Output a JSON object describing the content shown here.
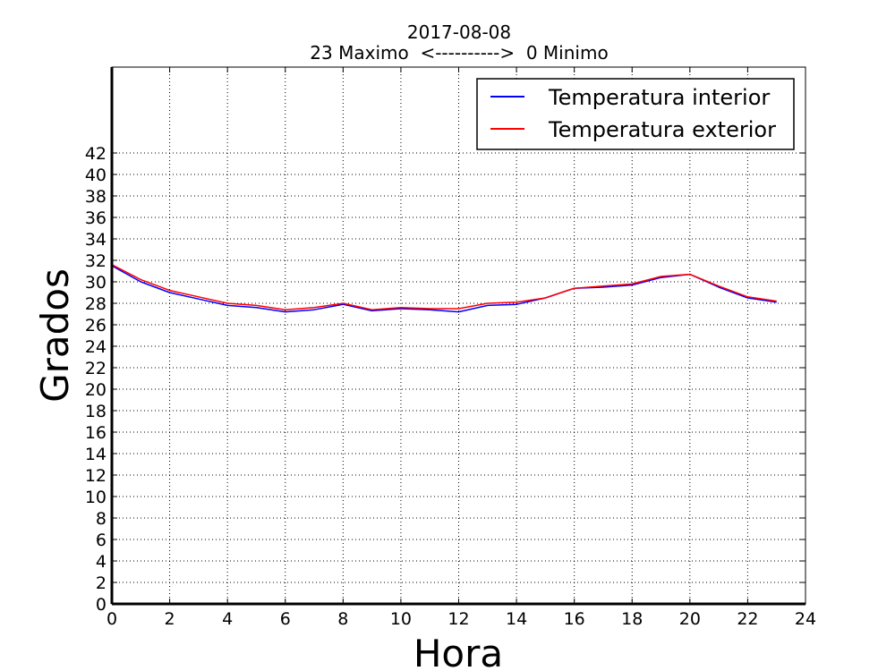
{
  "chart_data": {
    "type": "line",
    "title": "2017-08-08",
    "subtitle": "23 Maximo  <---------->  0 Minimo",
    "xlabel": "Hora",
    "ylabel": "Grados",
    "xlim": [
      0,
      24
    ],
    "ylim": [
      0,
      50
    ],
    "x_ticks": [
      0,
      2,
      4,
      6,
      8,
      10,
      12,
      14,
      16,
      18,
      20,
      22,
      24
    ],
    "y_ticks": [
      0,
      2,
      4,
      6,
      8,
      10,
      12,
      14,
      16,
      18,
      20,
      22,
      24,
      26,
      28,
      30,
      32,
      34,
      36,
      38,
      40,
      42
    ],
    "grid": true,
    "legend_position": "top-right",
    "x": [
      0,
      1,
      2,
      3,
      4,
      5,
      6,
      7,
      8,
      9,
      10,
      11,
      12,
      13,
      14,
      15,
      16,
      17,
      18,
      19,
      20,
      21,
      22,
      23
    ],
    "series": [
      {
        "name": "Temperatura interior",
        "color": "#0000ff",
        "values": [
          31.5,
          30.0,
          29.0,
          28.4,
          27.8,
          27.6,
          27.2,
          27.4,
          27.9,
          27.3,
          27.5,
          27.4,
          27.2,
          27.8,
          27.9,
          28.5,
          29.4,
          29.5,
          29.7,
          30.4,
          30.7,
          29.5,
          28.5,
          28.1
        ]
      },
      {
        "name": "Temperatura exterior",
        "color": "#ff0000",
        "values": [
          31.6,
          30.2,
          29.2,
          28.6,
          28.0,
          27.8,
          27.4,
          27.6,
          28.0,
          27.4,
          27.6,
          27.5,
          27.5,
          28.0,
          28.1,
          28.5,
          29.4,
          29.6,
          29.8,
          30.5,
          30.7,
          29.6,
          28.6,
          28.2
        ]
      }
    ]
  }
}
